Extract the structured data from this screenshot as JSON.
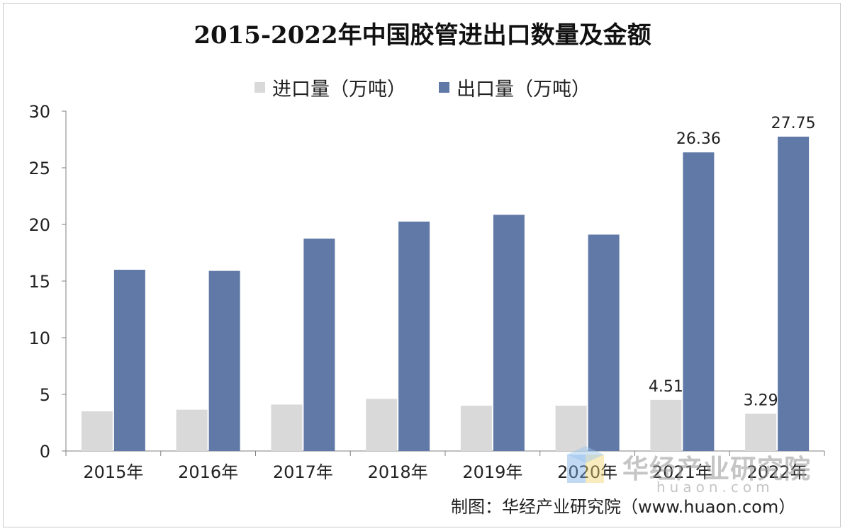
{
  "chart_data": {
    "type": "bar",
    "title": "2015-2022年中国胶管进出口数量及金额",
    "categories": [
      "2015年",
      "2016年",
      "2017年",
      "2018年",
      "2019年",
      "2020年",
      "2021年",
      "2022年"
    ],
    "series": [
      {
        "name": "进口量（万吨）",
        "color": "#d9d9d9",
        "values": [
          3.5,
          3.65,
          4.1,
          4.6,
          4.0,
          4.0,
          4.51,
          3.29
        ],
        "labels": [
          null,
          null,
          null,
          null,
          null,
          null,
          "4.51",
          "3.29"
        ]
      },
      {
        "name": "出口量（万吨）",
        "color": "#6079a6",
        "values": [
          16.0,
          15.9,
          18.75,
          20.25,
          20.85,
          19.1,
          26.36,
          27.75
        ],
        "labels": [
          null,
          null,
          null,
          null,
          null,
          null,
          "26.36",
          "27.75"
        ]
      }
    ],
    "yticks": [
      "0",
      "5",
      "10",
      "15",
      "20",
      "25",
      "30"
    ],
    "ylim": [
      0,
      30
    ],
    "xlabel": "",
    "ylabel": "",
    "grid": false,
    "legend_position": "top-center"
  },
  "source": "制图：华经产业研究院（www.huaon.com）",
  "watermark": {
    "text": "华经产业研究院",
    "url": "huaon.com"
  }
}
